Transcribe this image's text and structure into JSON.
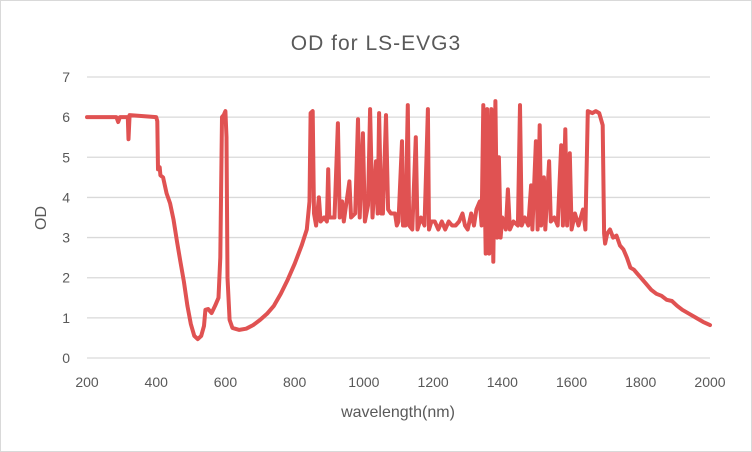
{
  "chart_data": {
    "type": "line",
    "title": "OD for LS-EVG3",
    "xlabel": "wavelength(nm)",
    "ylabel": "OD",
    "xlim": [
      200,
      2000
    ],
    "ylim": [
      0,
      7
    ],
    "xticks": [
      200,
      400,
      600,
      800,
      1000,
      1200,
      1400,
      1600,
      1800,
      2000
    ],
    "yticks": [
      0,
      1,
      2,
      3,
      4,
      5,
      6,
      7
    ],
    "grid": "horizontal",
    "legend": "none",
    "line_color": "#E05252",
    "series": [
      {
        "x": [
          200,
          285,
          290,
          295,
          318,
          320,
          323,
          400,
          403,
          405,
          410,
          412,
          420,
          430,
          440,
          450,
          460,
          470,
          480,
          490,
          500,
          510,
          520,
          530,
          538,
          542,
          550,
          560,
          570,
          580,
          585,
          590,
          595,
          600,
          603,
          606,
          612,
          620,
          640,
          660,
          680,
          700,
          720,
          740,
          760,
          780,
          800,
          820,
          835,
          843,
          846,
          852,
          856,
          862,
          870,
          875,
          885,
          893,
          897,
          900,
          915,
          925,
          930,
          937,
          942,
          958,
          963,
          975,
          983,
          988,
          997,
          1003,
          1012,
          1018,
          1025,
          1035,
          1040,
          1044,
          1050,
          1055,
          1064,
          1070,
          1078,
          1090,
          1095,
          1100,
          1110,
          1113,
          1120,
          1127,
          1131,
          1140,
          1150,
          1155,
          1165,
          1175,
          1185,
          1188,
          1195,
          1205,
          1215,
          1225,
          1235,
          1245,
          1255,
          1265,
          1275,
          1285,
          1292,
          1300,
          1310,
          1318,
          1325,
          1335,
          1340,
          1345,
          1352,
          1356,
          1362,
          1368,
          1374,
          1380,
          1385,
          1390,
          1395,
          1400,
          1410,
          1416,
          1422,
          1432,
          1445,
          1451,
          1456,
          1465,
          1475,
          1483,
          1487,
          1497,
          1502,
          1508,
          1512,
          1520,
          1524,
          1535,
          1540,
          1550,
          1560,
          1570,
          1575,
          1582,
          1587,
          1595,
          1600,
          1610,
          1620,
          1633,
          1640,
          1647,
          1660,
          1670,
          1680,
          1690,
          1694,
          1697,
          1703,
          1711,
          1720,
          1730,
          1740,
          1750,
          1760,
          1770,
          1780,
          1790,
          1800,
          1815,
          1830,
          1845,
          1860,
          1875,
          1890,
          1905,
          1920,
          1940,
          1960,
          1980,
          2000
        ],
        "y": [
          6.0,
          6.0,
          5.88,
          6.0,
          6.0,
          5.45,
          6.05,
          6.0,
          5.9,
          4.7,
          4.75,
          4.55,
          4.5,
          4.1,
          3.85,
          3.45,
          2.9,
          2.4,
          1.9,
          1.3,
          0.85,
          0.55,
          0.47,
          0.55,
          0.8,
          1.2,
          1.22,
          1.12,
          1.3,
          1.5,
          2.5,
          6.0,
          6.05,
          6.15,
          5.5,
          2.0,
          0.95,
          0.75,
          0.7,
          0.73,
          0.82,
          0.95,
          1.1,
          1.3,
          1.6,
          1.95,
          2.35,
          2.8,
          3.2,
          3.9,
          6.1,
          6.15,
          3.6,
          3.3,
          4.0,
          3.4,
          3.5,
          3.4,
          4.7,
          3.5,
          3.5,
          5.85,
          3.5,
          3.9,
          3.4,
          4.4,
          3.5,
          3.6,
          5.95,
          3.5,
          5.6,
          3.4,
          3.8,
          6.2,
          3.5,
          4.9,
          3.6,
          6.1,
          3.6,
          3.6,
          6.05,
          3.7,
          3.6,
          3.6,
          3.3,
          3.4,
          5.4,
          3.3,
          3.3,
          6.3,
          3.3,
          3.2,
          5.5,
          3.2,
          3.5,
          3.3,
          6.2,
          3.2,
          3.4,
          3.4,
          3.2,
          3.4,
          3.2,
          3.4,
          3.3,
          3.3,
          3.4,
          3.6,
          3.3,
          3.2,
          3.6,
          3.3,
          3.7,
          3.9,
          3.3,
          6.3,
          2.6,
          6.2,
          2.6,
          6.2,
          2.4,
          6.4,
          3.0,
          5.0,
          3.0,
          3.5,
          3.2,
          4.2,
          3.2,
          3.4,
          3.3,
          6.3,
          3.3,
          3.5,
          3.3,
          4.3,
          3.2,
          5.4,
          3.2,
          5.8,
          3.3,
          4.5,
          3.2,
          4.9,
          3.4,
          3.5,
          3.3,
          5.3,
          3.3,
          5.7,
          3.3,
          5.1,
          3.2,
          3.6,
          3.3,
          3.7,
          3.2,
          6.15,
          6.1,
          6.15,
          6.1,
          5.8,
          3.1,
          2.85,
          3.1,
          3.2,
          3.0,
          3.05,
          2.8,
          2.7,
          2.5,
          2.25,
          2.2,
          2.1,
          2.0,
          1.85,
          1.7,
          1.6,
          1.55,
          1.45,
          1.42,
          1.3,
          1.2,
          1.1,
          1.0,
          0.9,
          0.82
        ]
      }
    ]
  }
}
